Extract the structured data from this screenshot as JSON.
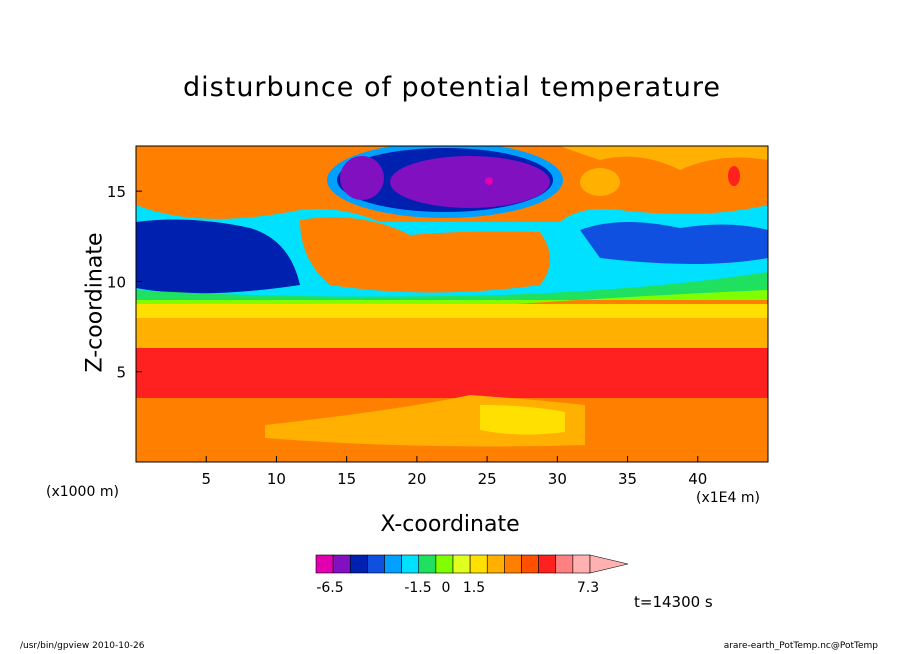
{
  "chart_data": {
    "type": "heatmap",
    "title": "disturbunce of potential temperature",
    "xlabel": "X-coordinate",
    "ylabel": "Z-coordinate",
    "x_unit_note": "(x1E4 m)",
    "y_unit_note": "(x1000 m)",
    "xlim": [
      0,
      45
    ],
    "ylim": [
      0,
      17.5
    ],
    "x_ticks": [
      "5",
      "10",
      "15",
      "20",
      "25",
      "30",
      "35",
      "40"
    ],
    "y_ticks": [
      "5",
      "10",
      "15"
    ],
    "colorbar": {
      "labels": [
        "-6.5",
        "-1.5",
        "0",
        "1.5",
        "7.3"
      ],
      "colors": [
        "#e000b0",
        "#8010c0",
        "#0020b0",
        "#1050e0",
        "#00a0ff",
        "#00e0ff",
        "#20e060",
        "#80ff00",
        "#e0ff20",
        "#ffe000",
        "#ffb000",
        "#ff8000",
        "#ff5000",
        "#ff2020",
        "#ff8080",
        "#ffb0b0"
      ]
    },
    "time_label": "t=14300 s"
  },
  "footer": {
    "left": "/usr/bin/gpview   2010-10-26",
    "right": "arare-earth_PotTemp.nc@PotTemp"
  }
}
